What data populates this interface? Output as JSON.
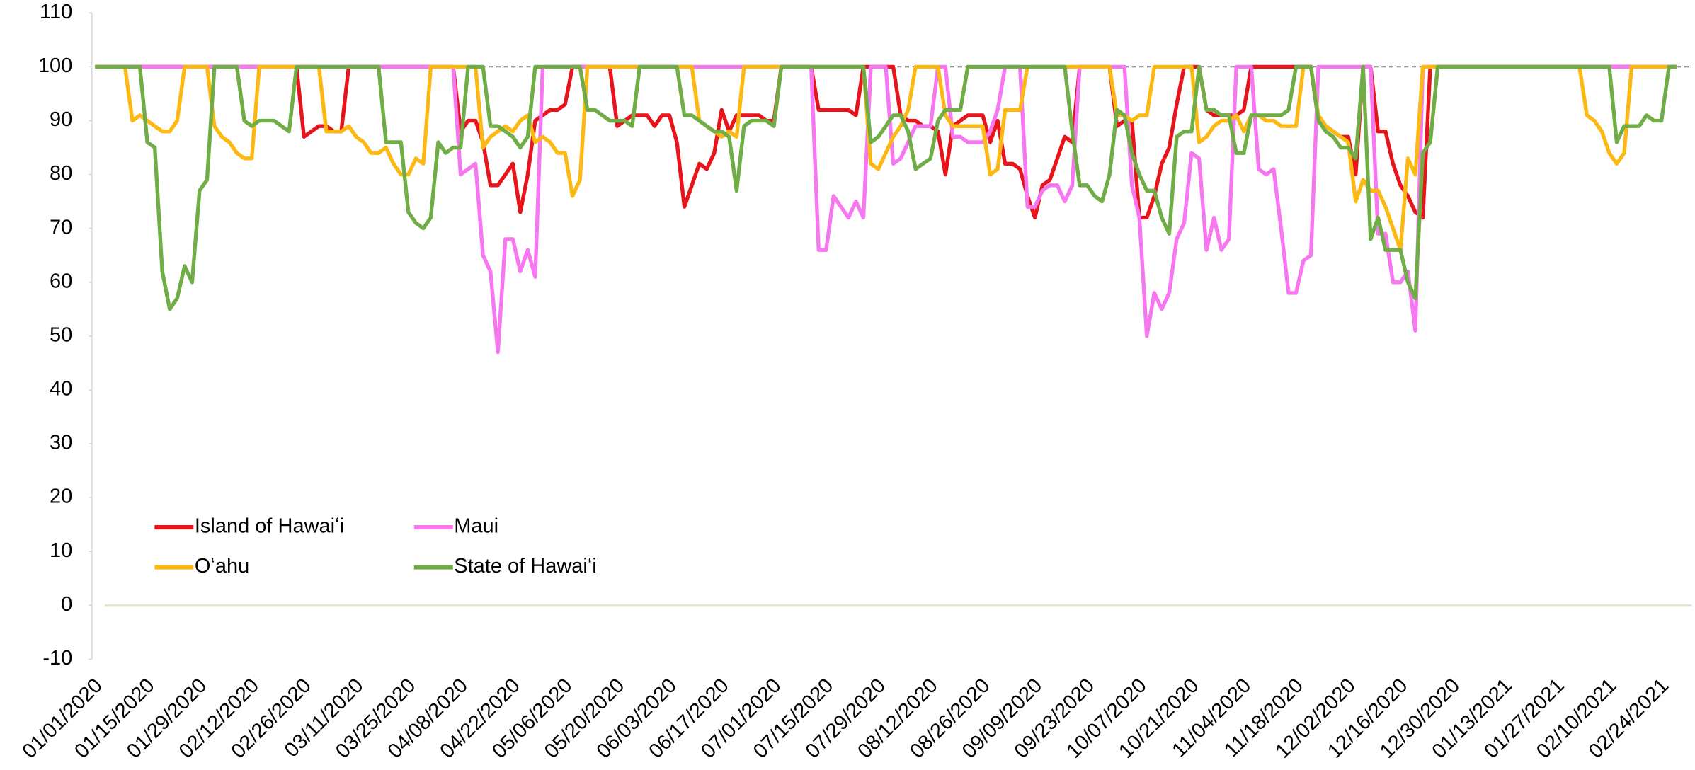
{
  "chart_data": {
    "type": "line",
    "categories": [
      "01/01/2020",
      null,
      null,
      null,
      null,
      null,
      null,
      "01/15/2020",
      null,
      null,
      null,
      null,
      null,
      null,
      "01/29/2020",
      null,
      null,
      null,
      null,
      null,
      null,
      "02/12/2020",
      null,
      null,
      null,
      null,
      null,
      null,
      "02/26/2020",
      null,
      null,
      null,
      null,
      null,
      null,
      "03/11/2020",
      null,
      null,
      null,
      null,
      null,
      null,
      "03/25/2020",
      null,
      null,
      null,
      null,
      null,
      null,
      "04/08/2020",
      null,
      null,
      null,
      null,
      null,
      null,
      "04/22/2020",
      null,
      null,
      null,
      null,
      null,
      null,
      "05/06/2020",
      null,
      null,
      null,
      null,
      null,
      null,
      "05/20/2020",
      null,
      null,
      null,
      null,
      null,
      null,
      "06/03/2020",
      null,
      null,
      null,
      null,
      null,
      null,
      "06/17/2020",
      null,
      null,
      null,
      null,
      null,
      null,
      "07/01/2020",
      null,
      null,
      null,
      null,
      null,
      null,
      "07/15/2020",
      null,
      null,
      null,
      null,
      null,
      null,
      "07/29/2020",
      null,
      null,
      null,
      null,
      null,
      null,
      "08/12/2020",
      null,
      null,
      null,
      null,
      null,
      null,
      "08/26/2020",
      null,
      null,
      null,
      null,
      null,
      null,
      "09/09/2020",
      null,
      null,
      null,
      null,
      null,
      null,
      "09/23/2020",
      null,
      null,
      null,
      null,
      null,
      null,
      "10/07/2020",
      null,
      null,
      null,
      null,
      null,
      null,
      "10/21/2020",
      null,
      null,
      null,
      null,
      null,
      null,
      "11/04/2020",
      null,
      null,
      null,
      null,
      null,
      null,
      "11/18/2020",
      null,
      null,
      null,
      null,
      null,
      null,
      "12/02/2020",
      null,
      null,
      null,
      null,
      null,
      null,
      "12/16/2020",
      null,
      null,
      null,
      null,
      null,
      null,
      "12/30/2020",
      null,
      null,
      null,
      null,
      null,
      null,
      "01/13/2021",
      null,
      null,
      null,
      null,
      null,
      null,
      "01/27/2021",
      null,
      null,
      null,
      null,
      null,
      null,
      "02/10/2021",
      null,
      null,
      null,
      null,
      null,
      null,
      "02/24/2021",
      null,
      null
    ],
    "series": [
      {
        "name": "Island of Hawaiʻi",
        "color": "#e8141b",
        "values": [
          100,
          100,
          100,
          100,
          100,
          100,
          100,
          100,
          100,
          100,
          100,
          100,
          100,
          100,
          100,
          100,
          100,
          100,
          100,
          100,
          100,
          100,
          100,
          100,
          100,
          100,
          100,
          100,
          87,
          88,
          89,
          89,
          88,
          88,
          100,
          100,
          100,
          100,
          100,
          100,
          100,
          100,
          100,
          100,
          100,
          100,
          100,
          100,
          100,
          88,
          90,
          90,
          86,
          78,
          78,
          80,
          82,
          73,
          80,
          90,
          91,
          92,
          92,
          93,
          100,
          100,
          100,
          100,
          100,
          100,
          89,
          90,
          91,
          91,
          91,
          89,
          91,
          91,
          86,
          74,
          78,
          82,
          81,
          84,
          92,
          88,
          91,
          91,
          91,
          91,
          90,
          90,
          100,
          100,
          100,
          100,
          100,
          92,
          92,
          92,
          92,
          92,
          91,
          100,
          100,
          100,
          100,
          100,
          91,
          90,
          90,
          89,
          89,
          88,
          80,
          89,
          90,
          91,
          91,
          91,
          86,
          90,
          82,
          82,
          81,
          76,
          72,
          78,
          79,
          83,
          87,
          86,
          100,
          100,
          100,
          100,
          100,
          89,
          90,
          90,
          72,
          72,
          76,
          82,
          85,
          93,
          100,
          100,
          100,
          92,
          91,
          91,
          91,
          91,
          92,
          100,
          100,
          100,
          100,
          100,
          100,
          100,
          100,
          100,
          90,
          89,
          88,
          87,
          87,
          80,
          100,
          100,
          88,
          88,
          82,
          78,
          76,
          73,
          72,
          100,
          100,
          100,
          100,
          100,
          100,
          100,
          100,
          100,
          100,
          100,
          100,
          100,
          100,
          100,
          100,
          100,
          100,
          100,
          100,
          100,
          100,
          100,
          100,
          100,
          100,
          100,
          100,
          100,
          100,
          100,
          100,
          100,
          100
        ]
      },
      {
        "name": "Maui",
        "color": "#f777f0",
        "values": [
          100,
          100,
          100,
          100,
          100,
          100,
          100,
          100,
          100,
          100,
          100,
          100,
          100,
          100,
          100,
          100,
          100,
          100,
          100,
          100,
          100,
          100,
          100,
          100,
          100,
          100,
          100,
          100,
          100,
          100,
          100,
          100,
          100,
          100,
          100,
          100,
          100,
          100,
          100,
          100,
          100,
          100,
          100,
          100,
          100,
          100,
          100,
          100,
          100,
          80,
          81,
          82,
          65,
          62,
          47,
          68,
          68,
          62,
          66,
          61,
          100,
          100,
          100,
          100,
          100,
          100,
          100,
          100,
          100,
          100,
          100,
          100,
          100,
          100,
          100,
          100,
          100,
          100,
          100,
          100,
          100,
          100,
          100,
          100,
          100,
          100,
          100,
          100,
          100,
          100,
          100,
          100,
          100,
          100,
          100,
          100,
          100,
          66,
          66,
          76,
          74,
          72,
          75,
          72,
          100,
          100,
          100,
          82,
          83,
          86,
          89,
          89,
          89,
          100,
          100,
          87,
          87,
          86,
          86,
          86,
          88,
          92,
          100,
          100,
          100,
          74,
          74,
          77,
          78,
          78,
          75,
          78,
          100,
          100,
          100,
          100,
          100,
          100,
          100,
          78,
          72,
          50,
          58,
          55,
          58,
          68,
          71,
          84,
          83,
          66,
          72,
          66,
          68,
          100,
          100,
          100,
          81,
          80,
          81,
          70,
          58,
          58,
          64,
          65,
          100,
          100,
          100,
          100,
          100,
          100,
          100,
          100,
          69,
          69,
          60,
          60,
          62,
          51,
          100,
          100,
          100,
          100,
          100,
          100,
          100,
          100,
          100,
          100,
          100,
          100,
          100,
          100,
          100,
          100,
          100,
          100,
          100,
          100,
          100,
          100,
          100,
          100,
          100,
          100,
          100,
          100,
          100,
          100,
          100,
          100,
          100,
          100,
          100
        ]
      },
      {
        "name": "Oʻahu",
        "color": "#fdb913",
        "values": [
          100,
          100,
          100,
          100,
          100,
          90,
          91,
          90,
          89,
          88,
          88,
          90,
          100,
          100,
          100,
          100,
          89,
          87,
          86,
          84,
          83,
          83,
          100,
          100,
          100,
          100,
          100,
          100,
          100,
          100,
          100,
          88,
          88,
          88,
          89,
          87,
          86,
          84,
          84,
          85,
          82,
          80,
          80,
          83,
          82,
          100,
          100,
          100,
          100,
          100,
          100,
          100,
          85,
          87,
          88,
          89,
          88,
          90,
          91,
          86,
          87,
          86,
          84,
          84,
          76,
          79,
          100,
          100,
          100,
          100,
          100,
          100,
          100,
          100,
          100,
          100,
          100,
          100,
          100,
          100,
          100,
          90,
          89,
          88,
          87,
          88,
          87,
          100,
          100,
          100,
          100,
          100,
          100,
          100,
          100,
          100,
          100,
          100,
          100,
          100,
          100,
          100,
          100,
          100,
          82,
          81,
          84,
          87,
          89,
          92,
          100,
          100,
          100,
          100,
          91,
          89,
          89,
          89,
          89,
          89,
          80,
          81,
          92,
          92,
          92,
          100,
          100,
          100,
          100,
          100,
          100,
          100,
          100,
          100,
          100,
          100,
          100,
          91,
          91,
          90,
          91,
          91,
          100,
          100,
          100,
          100,
          100,
          100,
          86,
          87,
          89,
          90,
          90,
          91,
          88,
          91,
          91,
          90,
          90,
          89,
          89,
          89,
          100,
          100,
          91,
          89,
          88,
          87,
          86,
          75,
          79,
          77,
          77,
          74,
          70,
          66,
          83,
          80,
          100,
          100,
          100,
          100,
          100,
          100,
          100,
          100,
          100,
          100,
          100,
          100,
          100,
          100,
          100,
          100,
          100,
          100,
          100,
          100,
          100,
          100,
          91,
          90,
          88,
          84,
          82,
          84,
          100,
          100,
          100,
          100,
          100,
          100,
          100
        ]
      },
      {
        "name": "State of Hawaiʻi",
        "color": "#70ad47",
        "values": [
          100,
          100,
          100,
          100,
          100,
          100,
          100,
          86,
          85,
          62,
          55,
          57,
          63,
          60,
          77,
          79,
          100,
          100,
          100,
          100,
          90,
          89,
          90,
          90,
          90,
          89,
          88,
          100,
          100,
          100,
          100,
          100,
          100,
          100,
          100,
          100,
          100,
          100,
          100,
          86,
          86,
          86,
          73,
          71,
          70,
          72,
          86,
          84,
          85,
          85,
          100,
          100,
          100,
          89,
          89,
          88,
          87,
          85,
          87,
          100,
          100,
          100,
          100,
          100,
          100,
          100,
          92,
          92,
          91,
          90,
          90,
          90,
          89,
          100,
          100,
          100,
          100,
          100,
          100,
          91,
          91,
          90,
          89,
          88,
          88,
          87,
          77,
          89,
          90,
          90,
          90,
          89,
          100,
          100,
          100,
          100,
          100,
          100,
          100,
          100,
          100,
          100,
          100,
          100,
          86,
          87,
          89,
          91,
          91,
          88,
          81,
          82,
          83,
          90,
          92,
          92,
          92,
          100,
          100,
          100,
          100,
          100,
          100,
          100,
          100,
          100,
          100,
          100,
          100,
          100,
          100,
          88,
          78,
          78,
          76,
          75,
          80,
          92,
          91,
          84,
          80,
          77,
          77,
          72,
          69,
          87,
          88,
          88,
          100,
          92,
          92,
          91,
          91,
          84,
          84,
          91,
          91,
          91,
          91,
          91,
          92,
          100,
          100,
          100,
          90,
          88,
          87,
          85,
          85,
          83,
          100,
          68,
          72,
          66,
          66,
          66,
          60,
          57,
          84,
          86,
          100,
          100,
          100,
          100,
          100,
          100,
          100,
          100,
          100,
          100,
          100,
          100,
          100,
          100,
          100,
          100,
          100,
          100,
          100,
          100,
          100,
          100,
          100,
          100,
          86,
          89,
          89,
          89,
          91,
          90,
          90,
          100,
          100
        ]
      }
    ],
    "reference_line": 100,
    "ylim": [
      -10,
      110
    ],
    "yticks": [
      -10,
      0,
      10,
      20,
      30,
      40,
      50,
      60,
      70,
      80,
      90,
      100,
      110
    ],
    "grid": false,
    "legend": "lower left"
  }
}
